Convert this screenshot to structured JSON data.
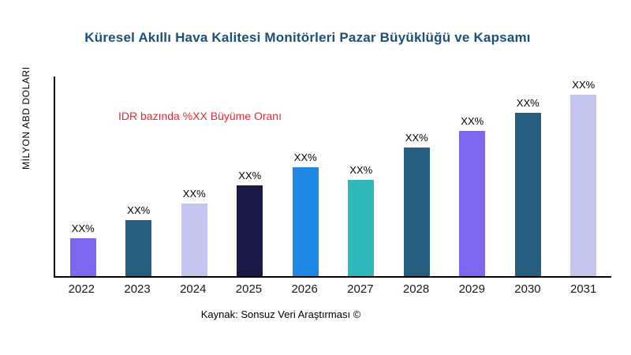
{
  "title": "Küresel Akıllı Hava Kalitesi Monitörleri Pazar Büyüklüğü ve Kapsamı",
  "y_axis_label": "MİLYON ABD DOLARI",
  "annotation": "IDR bazında %XX Büyüme Oranı",
  "source": "Kaynak: Sonsuz Veri Araştırması ©",
  "colors": {
    "title": "#1F4E79",
    "annotation": "#E8262C",
    "axis": "#000000",
    "background": "#FFFFFF"
  },
  "chart_data": {
    "type": "bar",
    "title": "Küresel Akıllı Hava Kalitesi Monitörleri Pazar Büyüklüğü ve Kapsamı",
    "xlabel": "",
    "ylabel": "MİLYON ABD DOLARI",
    "categories": [
      "2022",
      "2023",
      "2024",
      "2025",
      "2026",
      "2027",
      "2028",
      "2029",
      "2030",
      "2031"
    ],
    "values": [
      21,
      31,
      40,
      50,
      60,
      53,
      71,
      80,
      90,
      100
    ],
    "bar_labels": [
      "XX%",
      "XX%",
      "XX%",
      "XX%",
      "XX%",
      "XX%",
      "XX%",
      "XX%",
      "XX%",
      "XX%"
    ],
    "bar_colors": [
      "#7B68EE",
      "#255E7E",
      "#C5C6F0",
      "#181945",
      "#1E88E5",
      "#2FB8BC",
      "#255E7E",
      "#7B68EE",
      "#255E7E",
      "#C5C6F0"
    ],
    "ylim": [
      0,
      110
    ],
    "grid": false,
    "legend": false,
    "annotation": "IDR bazında %XX Büyüme Oranı",
    "value_note": "values are relative units estimated from bar heights; data labels show placeholder XX%"
  }
}
